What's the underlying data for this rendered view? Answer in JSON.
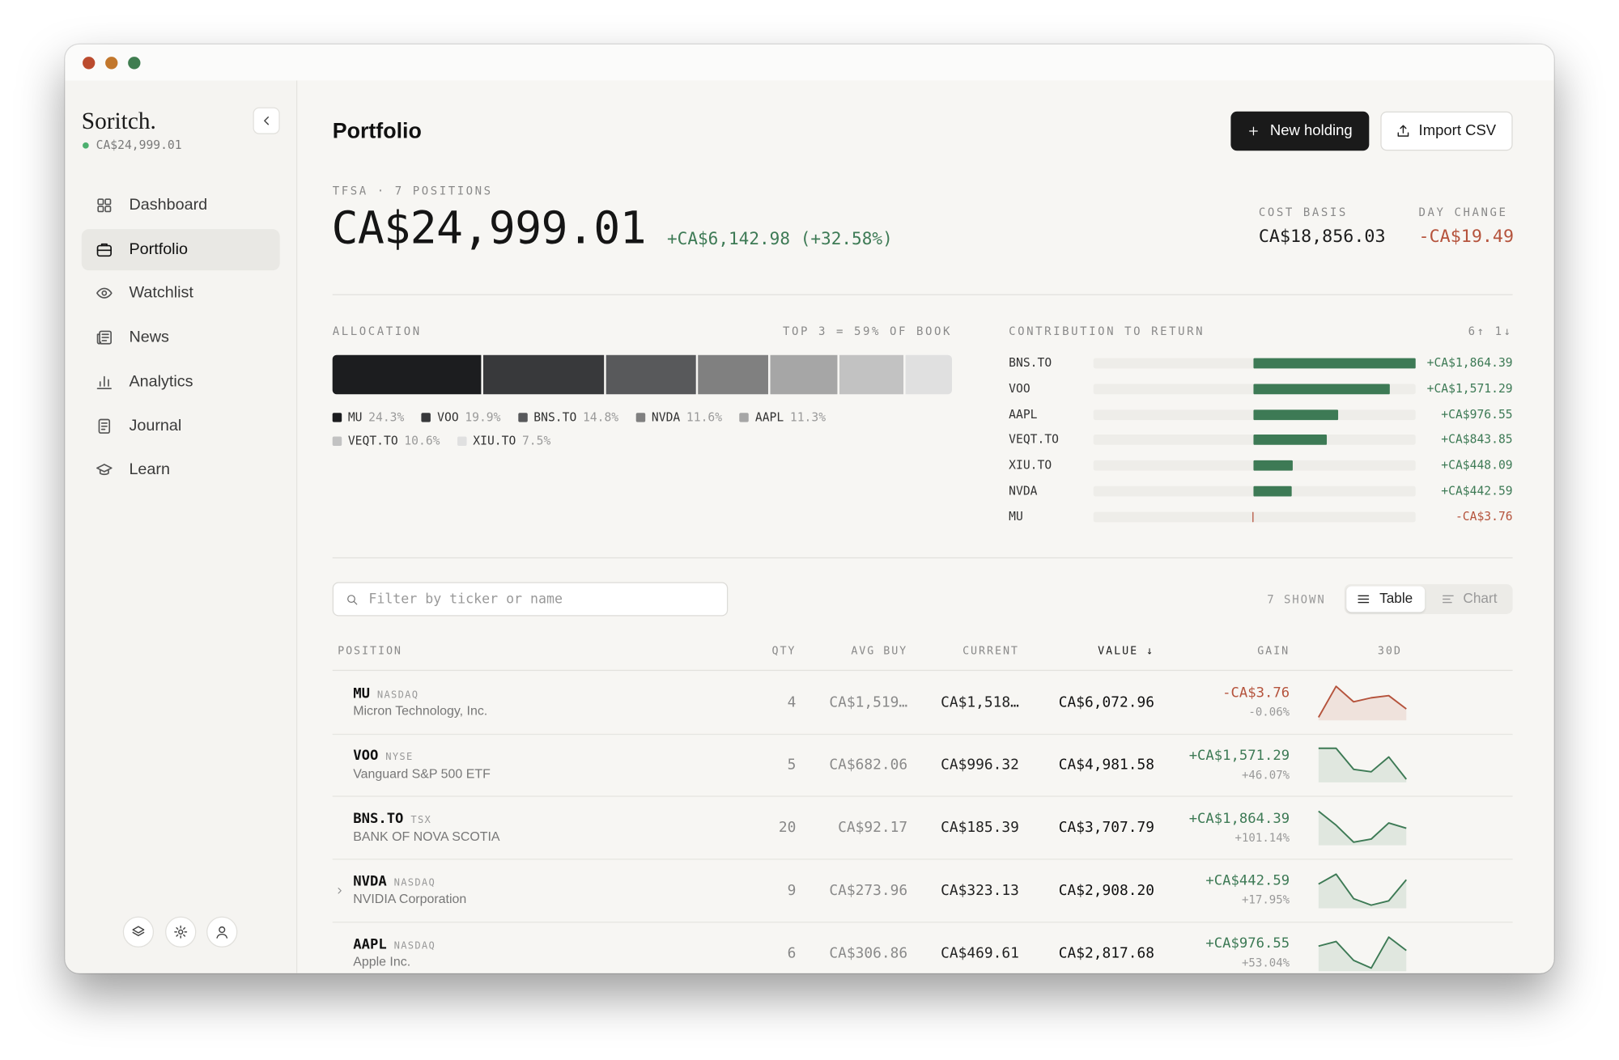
{
  "sidebar": {
    "brand": "Soritch.",
    "balance": "CA$24,999.01",
    "nav": [
      "Dashboard",
      "Portfolio",
      "Watchlist",
      "News",
      "Analytics",
      "Journal",
      "Learn"
    ],
    "active_index": 1
  },
  "header": {
    "title": "Portfolio",
    "buttons": [
      "New holding",
      "Import CSV"
    ]
  },
  "summary": {
    "caption": "TFSA · 7 POSITIONS",
    "total": "CA$24,999.01",
    "gain": "+CA$6,142.98 (+32.58%)",
    "stats": [
      {
        "label": "COST BASIS",
        "value": "CA$18,856.03",
        "color": "#1c1c1c"
      },
      {
        "label": "DAY CHANGE",
        "value": "-CA$19.49",
        "color": "#b5533c"
      }
    ]
  },
  "allocation": {
    "title": "ALLOCATION",
    "note": "TOP 3 = 59% OF BOOK",
    "items": [
      {
        "ticker": "MU",
        "value": 24.3,
        "label": "24.3%",
        "color": "#1c1d1f"
      },
      {
        "ticker": "VOO",
        "value": 19.9,
        "label": "19.9%",
        "color": "#38393b"
      },
      {
        "ticker": "BNS.TO",
        "value": 14.8,
        "label": "14.8%",
        "color": "#58595b"
      },
      {
        "ticker": "NVDA",
        "value": 11.6,
        "label": "11.6%",
        "color": "#808080"
      },
      {
        "ticker": "AAPL",
        "value": 11.3,
        "label": "11.3%",
        "color": "#a6a6a6"
      },
      {
        "ticker": "VEQT.TO",
        "value": 10.6,
        "label": "10.6%",
        "color": "#c2c2c2"
      },
      {
        "ticker": "XIU.TO",
        "value": 7.5,
        "label": "7.5%",
        "color": "#e0e0e0"
      }
    ]
  },
  "contribution": {
    "title": "CONTRIBUTION TO RETURN",
    "sort": "6↑ 1↓",
    "items": [
      {
        "ticker": "BNS.TO",
        "amount": 1864.39,
        "label": "+CA$1,864.39",
        "color": "#3d7a55"
      },
      {
        "ticker": "VOO",
        "amount": 1571.29,
        "label": "+CA$1,571.29",
        "color": "#3d7a55"
      },
      {
        "ticker": "AAPL",
        "amount": 976.55,
        "label": "+CA$976.55",
        "color": "#3d7a55"
      },
      {
        "ticker": "VEQT.TO",
        "amount": 843.85,
        "label": "+CA$843.85",
        "color": "#3d7a55"
      },
      {
        "ticker": "XIU.TO",
        "amount": 448.09,
        "label": "+CA$448.09",
        "color": "#3d7a55"
      },
      {
        "ticker": "NVDA",
        "amount": 442.59,
        "label": "+CA$442.59",
        "color": "#3d7a55"
      },
      {
        "ticker": "MU",
        "amount": -3.76,
        "label": "-CA$3.76",
        "color": "#b5533c"
      }
    ]
  },
  "holdings": {
    "filter_placeholder": "Filter by ticker or name",
    "shown": "7 SHOWN",
    "views": [
      "Table",
      "Chart"
    ],
    "columns": [
      "POSITION",
      "QTY",
      "AVG BUY",
      "CURRENT",
      "VALUE ↓",
      "GAIN",
      "30D"
    ],
    "rows": [
      {
        "ticker": "MU",
        "exchange": "NASDAQ",
        "name": "Micron Technology, Inc.",
        "qty": 4,
        "avg": "CA$1,519…",
        "current": "CA$1,518…",
        "value": "CA$6,072.96",
        "gain": "-CA$3.76",
        "gain_pct": "-0.06%",
        "color": "#b5533c",
        "spark": [
          0,
          100,
          50,
          63,
          70,
          27
        ]
      },
      {
        "ticker": "VOO",
        "exchange": "NYSE",
        "name": "Vanguard S&P 500 ETF",
        "qty": 5,
        "avg": "CA$682.06",
        "current": "CA$996.32",
        "value": "CA$4,981.58",
        "gain": "+CA$1,571.29",
        "gain_pct": "+46.07%",
        "color": "#3d7a55",
        "spark": [
          100,
          100,
          32,
          24,
          72,
          0
        ]
      },
      {
        "ticker": "BNS.TO",
        "exchange": "TSX",
        "name": "BANK OF NOVA SCOTIA",
        "qty": 20,
        "avg": "CA$92.17",
        "current": "CA$185.39",
        "value": "CA$3,707.79",
        "gain": "+CA$1,864.39",
        "gain_pct": "+101.14%",
        "color": "#3d7a55",
        "spark": [
          100,
          55,
          0,
          10,
          62,
          45
        ]
      },
      {
        "ticker": "NVDA",
        "exchange": "NASDAQ",
        "name": "NVIDIA Corporation",
        "qty": 9,
        "avg": "CA$273.96",
        "current": "CA$323.13",
        "value": "CA$2,908.20",
        "gain": "+CA$442.59",
        "gain_pct": "+17.95%",
        "color": "#3d7a55",
        "chevron": true,
        "spark": [
          68,
          100,
          21,
          0,
          14,
          82
        ]
      },
      {
        "ticker": "AAPL",
        "exchange": "NASDAQ",
        "name": "Apple Inc.",
        "qty": 6,
        "avg": "CA$306.86",
        "current": "CA$469.61",
        "value": "CA$2,817.68",
        "gain": "+CA$976.55",
        "gain_pct": "+53.04%",
        "color": "#3d7a55",
        "spark": [
          71,
          86,
          25,
          0,
          100,
          57
        ]
      }
    ]
  }
}
